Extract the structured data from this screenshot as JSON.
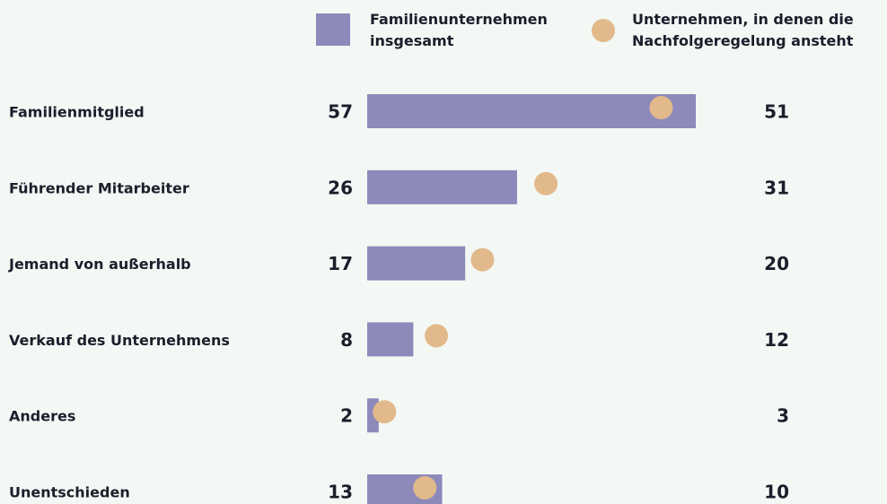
{
  "chart_data": {
    "type": "bar_dot",
    "categories": [
      "Familienmitglied",
      "Führender Mitarbeiter",
      "Jemand von außerhalb",
      "Verkauf des Unternehmens",
      "Anderes",
      "Unentschieden"
    ],
    "series": [
      {
        "name": "Familienunternehmen insgesamt",
        "color": "#8d89bb",
        "values": [
          57,
          26,
          17,
          8,
          2,
          13
        ]
      },
      {
        "name": "Unternehmen, in denen die Nachfolgeregelung ansteht",
        "color": "#e2b98b",
        "values": [
          51,
          31,
          20,
          12,
          3,
          10
        ]
      }
    ],
    "legend": "top"
  }
}
